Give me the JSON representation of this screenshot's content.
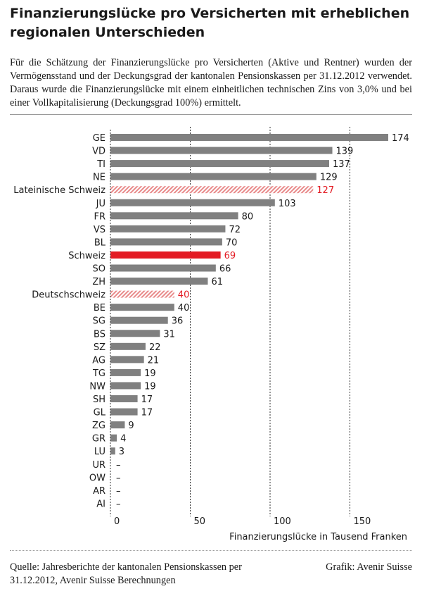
{
  "header": {
    "title": "Finanzierungslücke pro Versicherten mit erheblichen regionalen Unterschieden",
    "subtitle": "Für die Schätzung der Finanzierungslücke pro Versicherten (Aktive und Rentner) wurden der Vermögensstand und der Deckungsgrad der kantonalen Pensionskassen per 31.12.2012 verwendet. Daraus wurde die Finanzierungslücke mit einem einheitlichen technischen Zins von 3,0% und bei einer Vollkapitalisierung (Deckungsgrad 100%) ermittelt."
  },
  "footer": {
    "source": "Quelle: Jahresberichte der kantonalen Pensionskassen per 31.12.2012, Avenir Suisse Berechnungen",
    "credit": "Grafik: Avenir Suisse"
  },
  "colors": {
    "bar": "#808080",
    "highlight": "#e31b23",
    "hatch": "#e88a8a",
    "text": "#1a1a1a"
  },
  "chart_data": {
    "type": "bar",
    "orientation": "horizontal",
    "xlabel": "Finanzierungslücke in Tausend Franken",
    "xlim": [
      0,
      185
    ],
    "xticks": [
      0,
      50,
      100,
      150
    ],
    "xtick_labels": [
      "0",
      "50",
      "100",
      "150"
    ],
    "grid": "vertical dashed at 50, 100, 150",
    "categories": [
      "GE",
      "VD",
      "TI",
      "NE",
      "Lateinische Schweiz",
      "JU",
      "FR",
      "VS",
      "BL",
      "Schweiz",
      "SO",
      "ZH",
      "Deutschschweiz",
      "BE",
      "SG",
      "BS",
      "SZ",
      "AG",
      "TG",
      "NW",
      "SH",
      "GL",
      "ZG",
      "GR",
      "LU",
      "UR",
      "OW",
      "AR",
      "AI"
    ],
    "values": [
      174,
      139,
      137,
      129,
      127,
      103,
      80,
      72,
      70,
      69,
      66,
      61,
      40,
      40,
      36,
      31,
      22,
      21,
      19,
      19,
      17,
      17,
      9,
      4,
      3,
      null,
      null,
      null,
      null
    ],
    "value_labels": [
      "174",
      "139",
      "137",
      "129",
      "127",
      "103",
      "80",
      "72",
      "70",
      "69",
      "66",
      "61",
      "40",
      "40",
      "36",
      "31",
      "22",
      "21",
      "19",
      "19",
      "17",
      "17",
      "9",
      "4",
      "3",
      "–",
      "–",
      "–",
      "–"
    ],
    "styles": [
      "plain",
      "plain",
      "plain",
      "plain",
      "hatched",
      "plain",
      "plain",
      "plain",
      "plain",
      "highlight",
      "plain",
      "plain",
      "hatched",
      "plain",
      "plain",
      "plain",
      "plain",
      "plain",
      "plain",
      "plain",
      "plain",
      "plain",
      "plain",
      "plain",
      "plain",
      "plain",
      "plain",
      "plain",
      "plain"
    ]
  }
}
